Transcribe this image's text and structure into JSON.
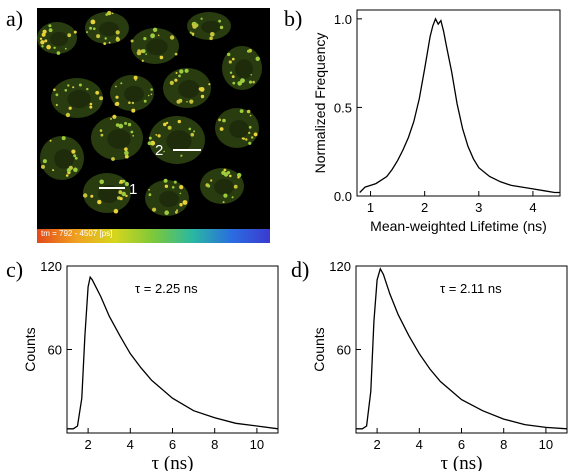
{
  "panel_labels": {
    "a": "a)",
    "b": "b)",
    "c": "c)",
    "d": "d)"
  },
  "image_panel": {
    "colorbar_caption": "tm = 792 - 4507 [ps]",
    "colorbar_range_ps": [
      792,
      4507
    ],
    "colorbar_colors": [
      "#e24a1a",
      "#f0a020",
      "#d6d61c",
      "#7cc83a",
      "#2ab8a0",
      "#2a6ee0",
      "#3a3ad0"
    ],
    "markers": [
      "1",
      "2"
    ]
  },
  "chart_data": [
    {
      "type": "line",
      "panel": "b",
      "xlabel": "Mean-weighted Lifetime (ns)",
      "ylabel": "Normalized Frequency",
      "xlim": [
        0.75,
        4.5
      ],
      "ylim": [
        0,
        1.05
      ],
      "xticks": [
        1,
        2,
        3,
        4
      ],
      "yticks": [
        "0.0",
        "0.5",
        "1.0"
      ],
      "ytick_values": [
        0,
        0.5,
        1.0
      ],
      "series": [
        {
          "x": [
            0.8,
            0.9,
            1.0,
            1.1,
            1.2,
            1.3,
            1.4,
            1.5,
            1.6,
            1.7,
            1.8,
            1.9,
            2.0,
            2.1,
            2.15,
            2.2,
            2.25,
            2.3,
            2.35,
            2.4,
            2.5,
            2.6,
            2.7,
            2.8,
            2.9,
            3.0,
            3.2,
            3.4,
            3.6,
            3.8,
            4.0,
            4.2,
            4.4,
            4.5
          ],
          "y": [
            0.02,
            0.05,
            0.06,
            0.07,
            0.09,
            0.11,
            0.15,
            0.2,
            0.26,
            0.33,
            0.42,
            0.55,
            0.72,
            0.9,
            0.96,
            1.0,
            0.97,
            0.99,
            0.93,
            0.85,
            0.7,
            0.52,
            0.38,
            0.28,
            0.21,
            0.16,
            0.11,
            0.08,
            0.06,
            0.05,
            0.04,
            0.03,
            0.02,
            0.02
          ]
        }
      ]
    },
    {
      "type": "line",
      "panel": "c",
      "xlabel": "τ (ns)",
      "ylabel": "Counts",
      "annotation": "τ = 2.25 ns",
      "xlim": [
        1,
        11
      ],
      "ylim": [
        0,
        120
      ],
      "xticks": [
        2,
        4,
        6,
        8,
        10
      ],
      "yticks": [
        "60",
        "120"
      ],
      "ytick_values": [
        60,
        120
      ],
      "series": [
        {
          "x": [
            1.0,
            1.3,
            1.5,
            1.7,
            1.85,
            2.0,
            2.1,
            2.2,
            2.6,
            3.0,
            3.5,
            4.0,
            4.5,
            5.0,
            6.0,
            7.0,
            8.0,
            9.0,
            10.0,
            11.0
          ],
          "y": [
            3,
            3,
            5,
            25,
            70,
            105,
            112,
            110,
            98,
            84,
            70,
            57,
            47,
            38,
            25,
            16,
            11,
            7,
            5,
            3
          ]
        }
      ]
    },
    {
      "type": "line",
      "panel": "d",
      "xlabel": "τ (ns)",
      "ylabel": "Counts",
      "annotation": "τ = 2.11 ns",
      "xlim": [
        1,
        11
      ],
      "ylim": [
        0,
        120
      ],
      "xticks": [
        2,
        4,
        6,
        8,
        10
      ],
      "yticks": [
        "60",
        "120"
      ],
      "ytick_values": [
        60,
        120
      ],
      "series": [
        {
          "x": [
            1.0,
            1.3,
            1.5,
            1.7,
            1.85,
            2.0,
            2.15,
            2.3,
            2.6,
            3.0,
            3.5,
            4.0,
            4.5,
            5.0,
            6.0,
            7.0,
            8.0,
            9.0,
            10.0,
            11.0
          ],
          "y": [
            3,
            3,
            5,
            30,
            80,
            110,
            118,
            114,
            100,
            85,
            70,
            57,
            46,
            37,
            24,
            16,
            10,
            6,
            4,
            3
          ]
        }
      ]
    }
  ]
}
